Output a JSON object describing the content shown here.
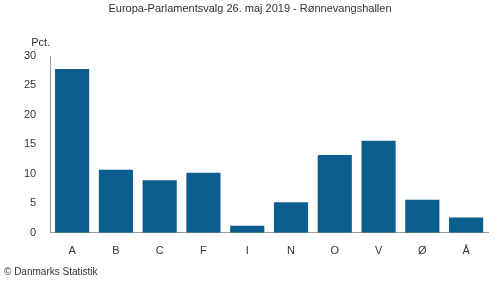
{
  "chart_data": {
    "type": "bar",
    "title": "Europa-Parlamentsvalg 26. maj 2019 - Rønnevangshallen",
    "ylabel": "Pct.",
    "annotations": [
      "© Danmarks Statistik"
    ],
    "categories": [
      "A",
      "B",
      "C",
      "F",
      "I",
      "N",
      "O",
      "V",
      "Ø",
      "Å"
    ],
    "values": [
      27.8,
      10.7,
      8.9,
      10.2,
      1.2,
      5.2,
      13.2,
      15.6,
      5.6,
      2.6
    ],
    "color": "#0b5e8e",
    "ylim": [
      0,
      30
    ],
    "yticks": [
      0,
      5,
      10,
      15,
      20,
      25,
      30
    ],
    "grid": false
  }
}
